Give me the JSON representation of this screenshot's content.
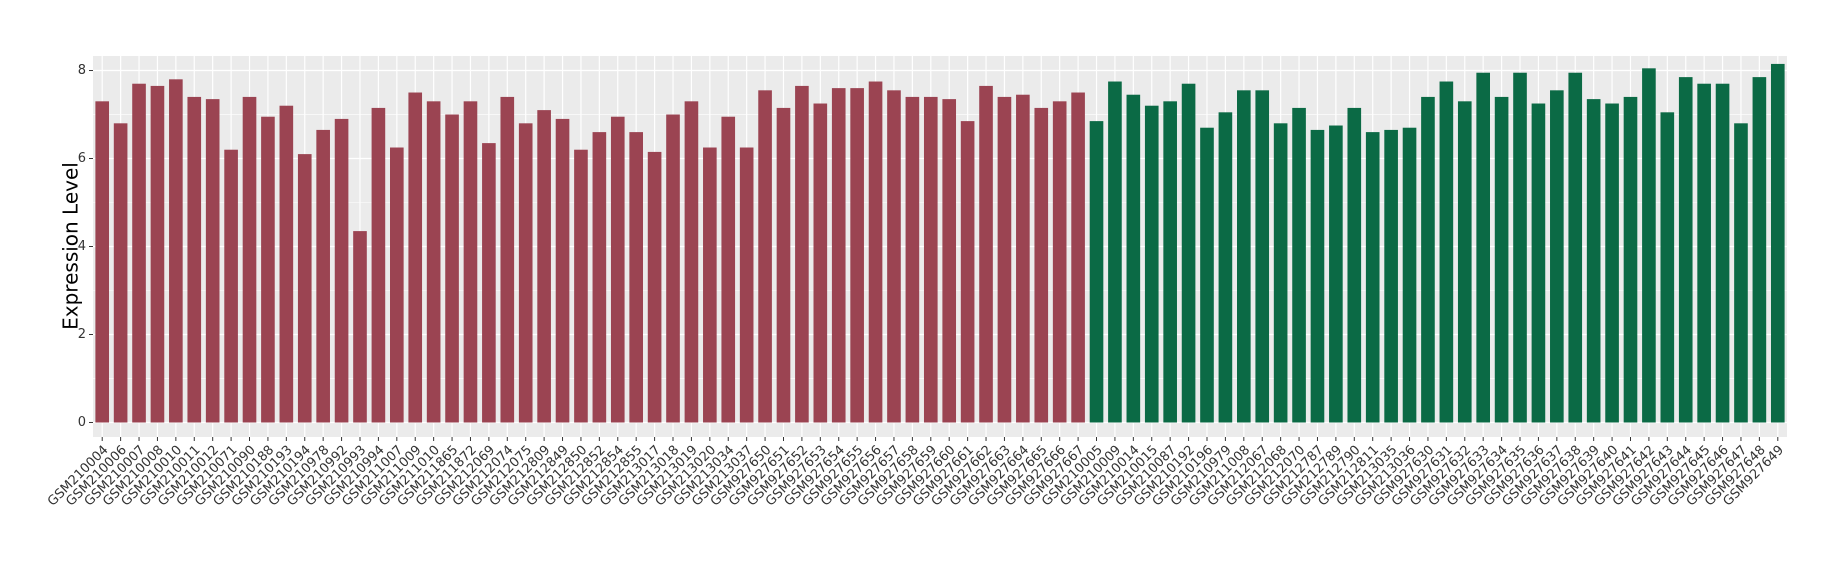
{
  "chart_data": {
    "type": "bar",
    "y_label": "Expression Level",
    "ylim": [
      -0.33,
      8.33
    ],
    "yticks": [
      0,
      2,
      4,
      6,
      8
    ],
    "grid": true,
    "groups": [
      {
        "color": "#9b4452",
        "categories": [
          "GSM210004",
          "GSM210006",
          "GSM210007",
          "GSM210008",
          "GSM210010",
          "GSM210011",
          "GSM210012",
          "GSM210071",
          "GSM210090",
          "GSM210188",
          "GSM210193",
          "GSM210194",
          "GSM210978",
          "GSM210992",
          "GSM210993",
          "GSM210994",
          "GSM211007",
          "GSM211009",
          "GSM211010",
          "GSM211865",
          "GSM211872",
          "GSM212069",
          "GSM212074",
          "GSM212075",
          "GSM212809",
          "GSM212849",
          "GSM212850",
          "GSM212852",
          "GSM212854",
          "GSM212855",
          "GSM213017",
          "GSM213018",
          "GSM213019",
          "GSM213020",
          "GSM213034",
          "GSM213037",
          "GSM927650",
          "GSM927651",
          "GSM927652",
          "GSM927653",
          "GSM927654",
          "GSM927655",
          "GSM927656",
          "GSM927657",
          "GSM927658",
          "GSM927659",
          "GSM927660",
          "GSM927661",
          "GSM927662",
          "GSM927663",
          "GSM927664",
          "GSM927665",
          "GSM927666",
          "GSM927667"
        ],
        "values": [
          7.3,
          6.8,
          7.7,
          7.65,
          7.8,
          7.4,
          7.35,
          6.2,
          7.4,
          6.95,
          7.2,
          6.1,
          6.65,
          6.9,
          4.35,
          7.15,
          6.25,
          7.5,
          7.3,
          7.0,
          7.3,
          6.35,
          7.4,
          6.8,
          7.1,
          6.9,
          6.2,
          6.6,
          6.95,
          6.6,
          6.15,
          7.0,
          7.3,
          6.25,
          6.95,
          6.25,
          7.55,
          7.15,
          7.65,
          7.25,
          7.6,
          7.6,
          7.75,
          7.55,
          7.4,
          7.4,
          7.35,
          6.85,
          7.65,
          7.4,
          7.45,
          7.15,
          7.3,
          7.5
        ]
      },
      {
        "color": "#0b6a45",
        "categories": [
          "GSM210005",
          "GSM210009",
          "GSM210014",
          "GSM210015",
          "GSM210087",
          "GSM210192",
          "GSM210196",
          "GSM210979",
          "GSM211008",
          "GSM212067",
          "GSM212068",
          "GSM212070",
          "GSM212787",
          "GSM212789",
          "GSM212790",
          "GSM212811",
          "GSM213035",
          "GSM213036",
          "GSM927630",
          "GSM927631",
          "GSM927632",
          "GSM927633",
          "GSM927634",
          "GSM927635",
          "GSM927636",
          "GSM927637",
          "GSM927638",
          "GSM927639",
          "GSM927640",
          "GSM927641",
          "GSM927642",
          "GSM927643",
          "GSM927644",
          "GSM927645",
          "GSM927646",
          "GSM927647",
          "GSM927648",
          "GSM927649"
        ],
        "values": [
          6.85,
          7.75,
          7.45,
          7.2,
          7.3,
          7.7,
          6.7,
          7.05,
          7.55,
          7.55,
          6.8,
          7.15,
          6.65,
          6.75,
          7.15,
          6.6,
          6.65,
          6.7,
          7.4,
          7.75,
          7.3,
          7.95,
          7.4,
          7.95,
          7.25,
          7.55,
          7.95,
          7.35,
          7.25,
          7.4,
          8.05,
          7.05,
          7.85,
          7.7,
          7.7,
          6.8,
          7.85,
          8.15
        ]
      }
    ]
  }
}
